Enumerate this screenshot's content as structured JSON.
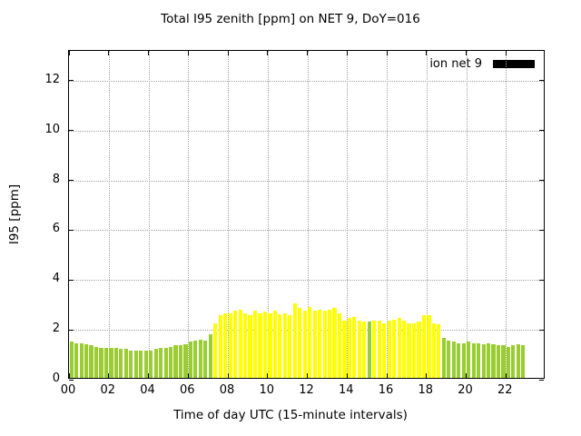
{
  "title": "Total I95 zenith [ppm] on NET 9, DoY=016",
  "legend": {
    "label": "ion net 9",
    "swatch_color": "#000000"
  },
  "axes": {
    "xlabel": "Time of day UTC (15-minute intervals)",
    "ylabel": "I95 [ppm]",
    "xticks": [
      "00",
      "02",
      "04",
      "06",
      "08",
      "10",
      "12",
      "14",
      "16",
      "18",
      "20",
      "22"
    ],
    "yticks": [
      0,
      2,
      4,
      6,
      8,
      10,
      12
    ]
  },
  "colors": {
    "grid": "#a0a0a0",
    "frame": "#000000"
  },
  "chart_data": {
    "type": "bar",
    "title": "Total I95 zenith [ppm] on NET 9, DoY=016",
    "xlabel": "Time of day UTC (15-minute intervals)",
    "ylabel": "I95 [ppm]",
    "series_name": "ion net 9",
    "xlim": [
      0,
      24
    ],
    "ylim": [
      0,
      13.2
    ],
    "grid": true,
    "legend_position": "top-right",
    "start_time": "00:00",
    "interval_minutes": 15,
    "color_key": {
      "g": "#9acd32",
      "y": "#ffff00"
    },
    "values": [
      1.45,
      1.4,
      1.4,
      1.35,
      1.3,
      1.25,
      1.2,
      1.2,
      1.2,
      1.2,
      1.15,
      1.15,
      1.1,
      1.1,
      1.1,
      1.1,
      1.1,
      1.15,
      1.2,
      1.2,
      1.25,
      1.3,
      1.3,
      1.35,
      1.45,
      1.5,
      1.55,
      1.5,
      1.75,
      2.2,
      2.5,
      2.6,
      2.6,
      2.7,
      2.75,
      2.6,
      2.5,
      2.7,
      2.6,
      2.65,
      2.6,
      2.7,
      2.55,
      2.6,
      2.5,
      3.0,
      2.8,
      2.7,
      2.85,
      2.7,
      2.75,
      2.7,
      2.75,
      2.8,
      2.6,
      2.3,
      2.4,
      2.45,
      2.3,
      2.25,
      2.25,
      2.3,
      2.3,
      2.2,
      2.3,
      2.35,
      2.4,
      2.3,
      2.2,
      2.2,
      2.25,
      2.5,
      2.5,
      2.2,
      2.15,
      1.6,
      1.5,
      1.45,
      1.4,
      1.4,
      1.45,
      1.4,
      1.4,
      1.35,
      1.4,
      1.35,
      1.3,
      1.3,
      1.25,
      1.3,
      1.35,
      1.3
    ],
    "bar_colors": [
      "g",
      "g",
      "g",
      "g",
      "g",
      "g",
      "g",
      "g",
      "g",
      "g",
      "g",
      "g",
      "g",
      "g",
      "g",
      "g",
      "g",
      "g",
      "g",
      "g",
      "g",
      "g",
      "g",
      "g",
      "g",
      "g",
      "g",
      "g",
      "g",
      "y",
      "y",
      "y",
      "y",
      "y",
      "y",
      "y",
      "y",
      "y",
      "y",
      "y",
      "y",
      "y",
      "y",
      "y",
      "y",
      "y",
      "y",
      "y",
      "y",
      "y",
      "y",
      "y",
      "y",
      "y",
      "y",
      "y",
      "y",
      "y",
      "y",
      "y",
      "g",
      "y",
      "y",
      "y",
      "y",
      "y",
      "y",
      "y",
      "y",
      "y",
      "y",
      "y",
      "y",
      "y",
      "y",
      "g",
      "g",
      "g",
      "g",
      "g",
      "g",
      "g",
      "g",
      "g",
      "g",
      "g",
      "g",
      "g",
      "g",
      "g",
      "g",
      "g"
    ]
  }
}
